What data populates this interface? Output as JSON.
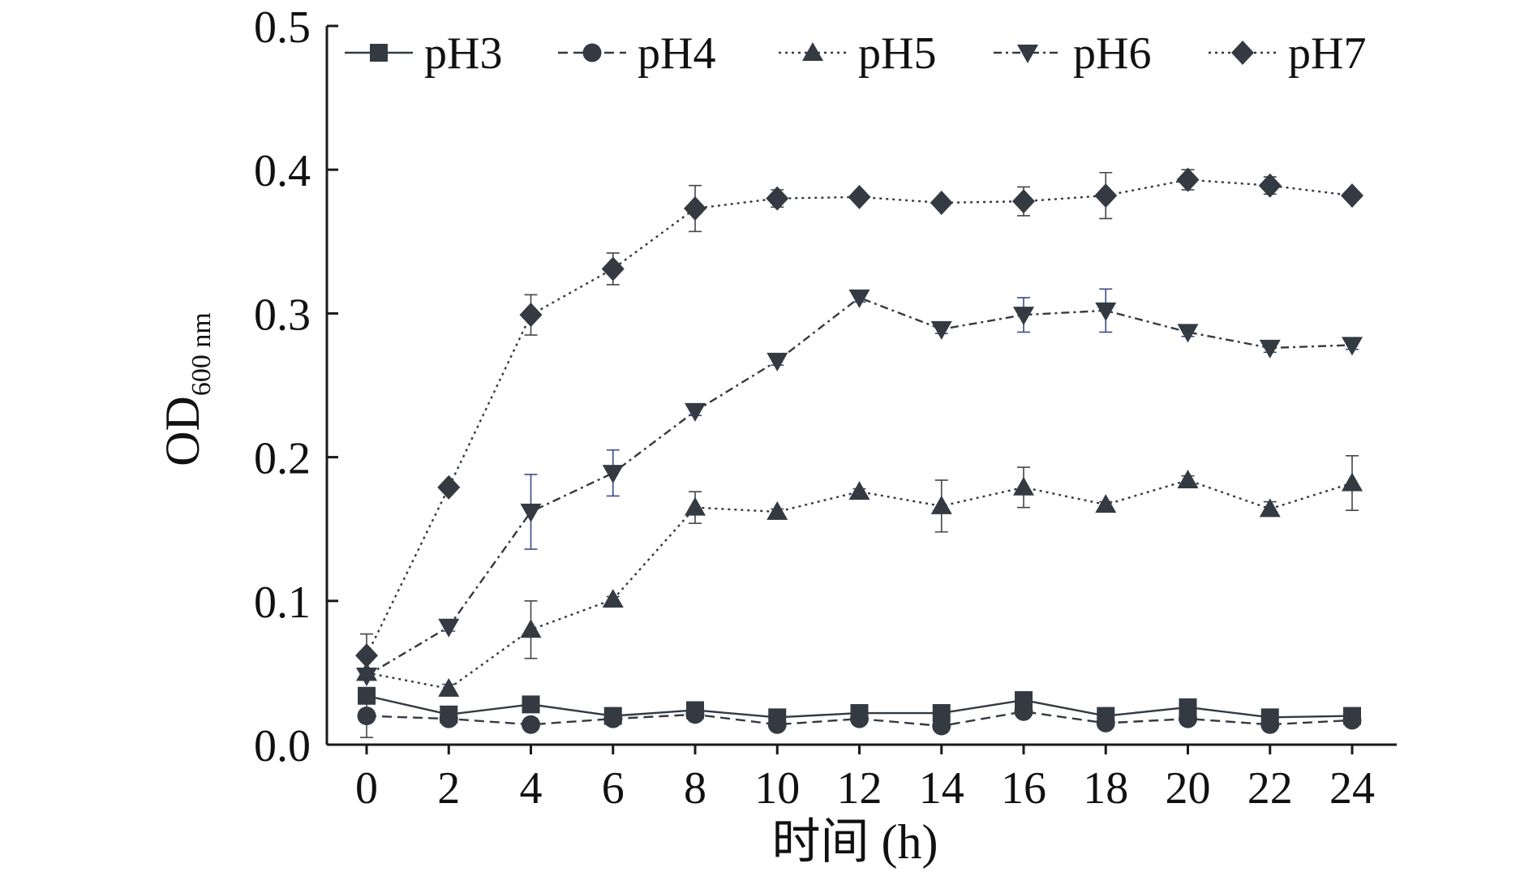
{
  "chart_data": {
    "type": "line",
    "title": "",
    "xlabel": "时间 (h)",
    "ylabel": "OD",
    "ylabel_subscript": "600 nm",
    "xlim": [
      0,
      24
    ],
    "ylim": [
      0,
      0.5
    ],
    "x_ticks": [
      "0",
      "2",
      "4",
      "6",
      "8",
      "10",
      "12",
      "14",
      "16",
      "18",
      "20",
      "22",
      "24"
    ],
    "y_ticks": [
      "0.0",
      "0.1",
      "0.2",
      "0.3",
      "0.4",
      "0.5"
    ],
    "grid": false,
    "legend_position": "top",
    "x": [
      0,
      2,
      4,
      6,
      8,
      10,
      12,
      14,
      16,
      18,
      20,
      22,
      24
    ],
    "series": [
      {
        "name": "pH3",
        "marker": "square",
        "line_style": "solid",
        "color": "#333a42",
        "values": [
          0.034,
          0.021,
          0.028,
          0.02,
          0.024,
          0.019,
          0.022,
          0.022,
          0.031,
          0.02,
          0.026,
          0.019,
          0.02
        ],
        "errors": [
          0.002,
          0.002,
          0.002,
          0.002,
          0.002,
          0.002,
          0.002,
          0.002,
          0.002,
          0.002,
          0.003,
          0.002,
          0.002
        ]
      },
      {
        "name": "pH4",
        "marker": "circle",
        "line_style": "dashed",
        "color": "#333a42",
        "values": [
          0.02,
          0.018,
          0.014,
          0.018,
          0.021,
          0.014,
          0.018,
          0.013,
          0.023,
          0.015,
          0.018,
          0.014,
          0.017
        ],
        "errors": [
          0.015,
          0.002,
          0.002,
          0.002,
          0.002,
          0.002,
          0.002,
          0.002,
          0.002,
          0.002,
          0.002,
          0.002,
          0.002
        ]
      },
      {
        "name": "pH5",
        "marker": "triangle-up",
        "line_style": "dotted",
        "color": "#333a42",
        "values": [
          0.05,
          0.039,
          0.08,
          0.101,
          0.165,
          0.162,
          0.176,
          0.166,
          0.179,
          0.167,
          0.184,
          0.164,
          0.182
        ],
        "errors": [
          0.003,
          0.003,
          0.02,
          0.002,
          0.011,
          0.002,
          0.002,
          0.018,
          0.014,
          0.002,
          0.003,
          0.005,
          0.019
        ]
      },
      {
        "name": "pH6",
        "marker": "triangle-down",
        "line_style": "dash-dot",
        "color": "#333a42",
        "values": [
          0.048,
          0.082,
          0.162,
          0.189,
          0.232,
          0.267,
          0.311,
          0.289,
          0.299,
          0.302,
          0.287,
          0.276,
          0.278
        ],
        "errors": [
          0.003,
          0.003,
          0.026,
          0.016,
          0.003,
          0.003,
          0.003,
          0.003,
          0.012,
          0.015,
          0.003,
          0.003,
          0.003
        ]
      },
      {
        "name": "pH7",
        "marker": "diamond",
        "line_style": "dotted",
        "color": "#333a42",
        "values": [
          0.062,
          0.179,
          0.299,
          0.331,
          0.373,
          0.38,
          0.381,
          0.377,
          0.378,
          0.382,
          0.393,
          0.389,
          0.382
        ],
        "errors": [
          0.015,
          0.003,
          0.014,
          0.011,
          0.016,
          0.006,
          0.003,
          0.003,
          0.01,
          0.016,
          0.007,
          0.006,
          0.003
        ]
      }
    ]
  }
}
